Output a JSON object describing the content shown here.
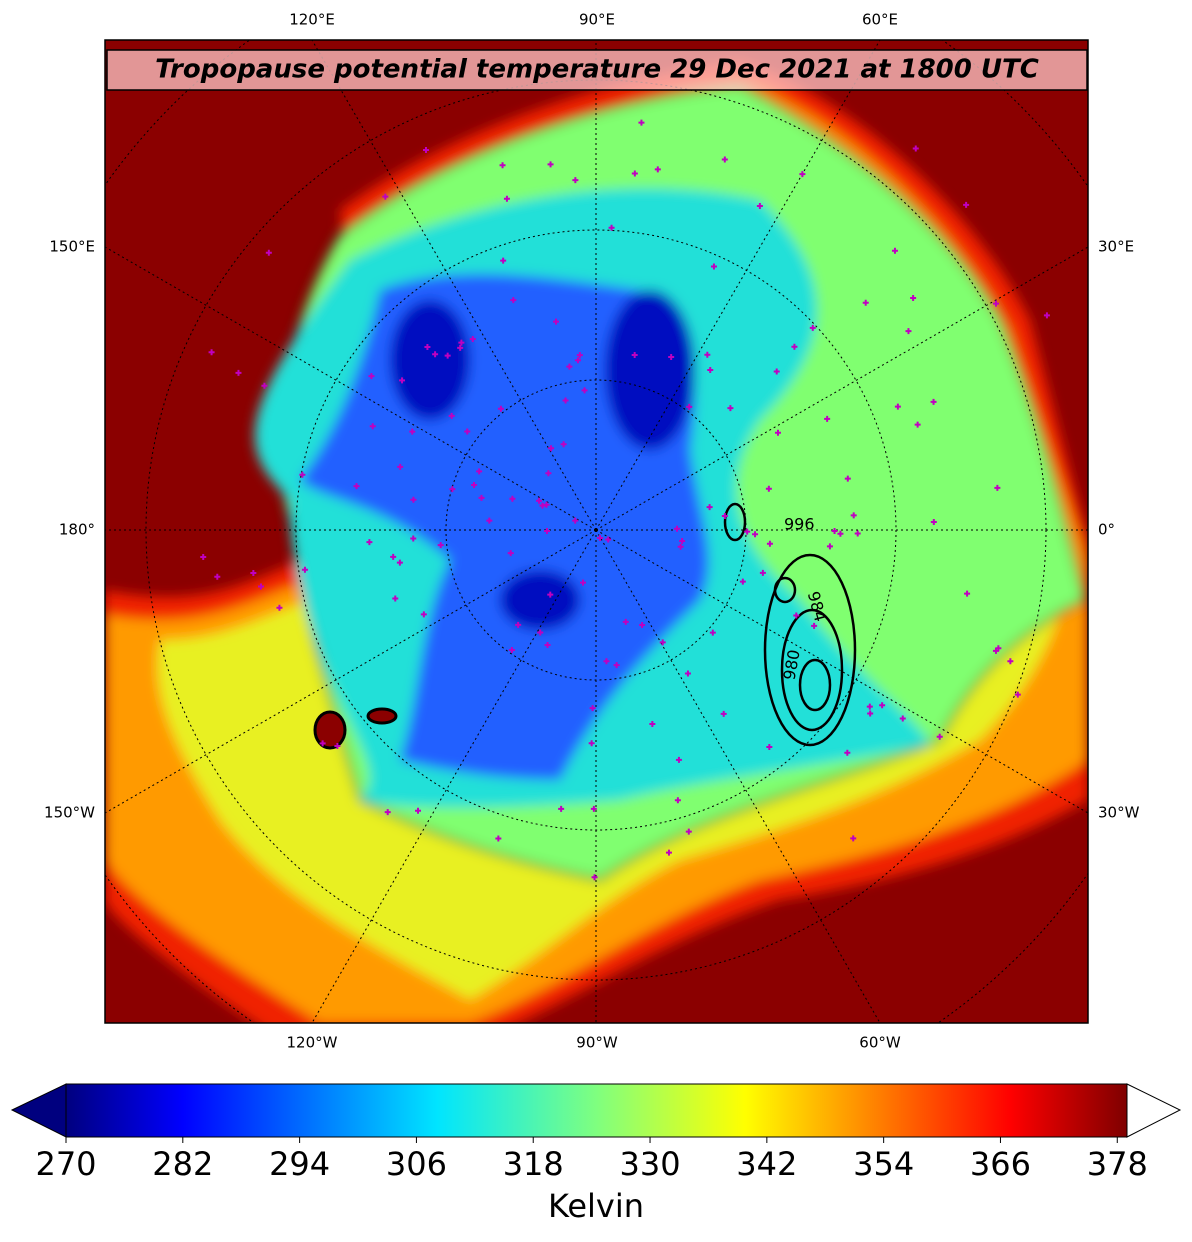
{
  "map": {
    "title": "Tropopause potential temperature 29 Dec 2021 at 1800 UTC",
    "lon_labels": {
      "top": [
        "120°E",
        "90°E",
        "60°E"
      ],
      "bottom": [
        "120°W",
        "90°W",
        "60°W"
      ],
      "left": [
        "150°E",
        "180°",
        "150°W"
      ],
      "right": [
        "30°E",
        "0°",
        "30°W"
      ]
    },
    "contour_labels": [
      "996",
      "984",
      "980"
    ]
  },
  "colorbar": {
    "label": "Kelvin",
    "clim": [
      270,
      379
    ],
    "ticks": [
      270,
      282,
      294,
      306,
      318,
      330,
      342,
      354,
      366,
      378
    ],
    "colormap": "jet"
  }
}
